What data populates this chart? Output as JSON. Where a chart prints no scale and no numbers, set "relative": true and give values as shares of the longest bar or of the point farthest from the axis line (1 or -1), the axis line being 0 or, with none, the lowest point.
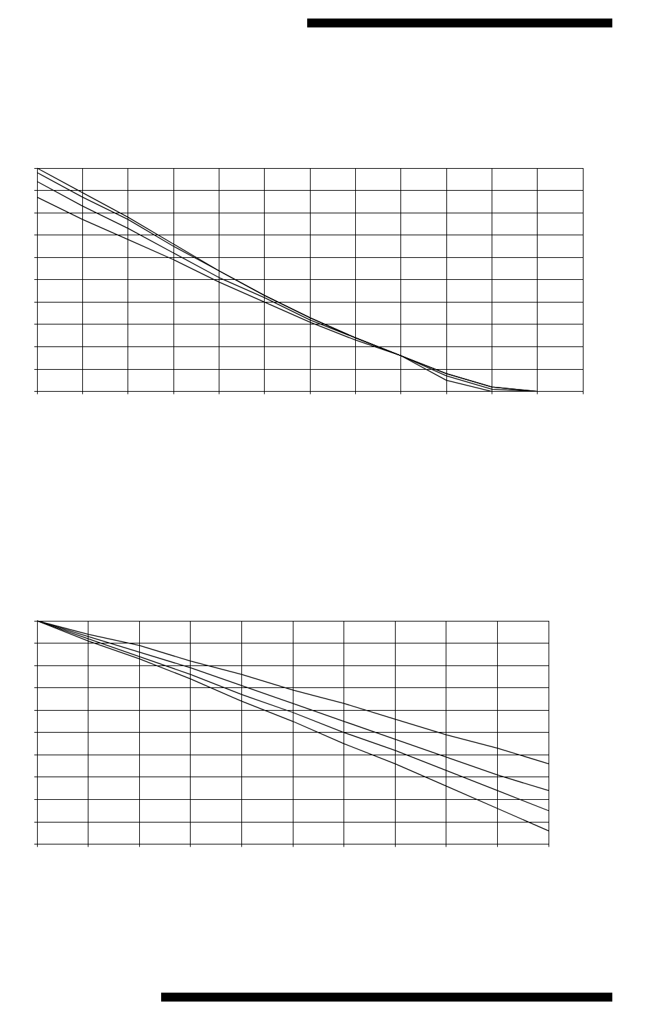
{
  "chart_data": [
    {
      "type": "line",
      "relative": true,
      "grid": true,
      "legend": false,
      "marker": "none",
      "line_style": "solid",
      "categories": [
        null,
        null,
        null,
        null,
        null,
        null,
        null,
        null,
        null,
        null,
        null,
        null,
        null
      ],
      "series": [
        {
          "color": "#000000",
          "values": [
            1,
            0.89,
            0.78,
            0.66,
            0.54,
            0.43,
            0.33,
            0.24,
            0.16,
            0.08,
            0.02,
            0,
            null
          ]
        },
        {
          "color": "#000000",
          "values": [
            0.98,
            0.87,
            0.77,
            0.65,
            0.54,
            0.43,
            0.33,
            0.24,
            0.16,
            0.08,
            0.02,
            0,
            null
          ]
        },
        {
          "color": "#000000",
          "values": [
            0.94,
            0.83,
            0.73,
            0.62,
            0.51,
            0.42,
            0.32,
            0.24,
            0.16,
            0.07,
            0.01,
            0,
            null
          ]
        },
        {
          "color": "#000000",
          "values": [
            0.87,
            0.77,
            0.68,
            0.59,
            0.49,
            0.4,
            0.31,
            0.23,
            0.16,
            0.05,
            0,
            0,
            null
          ]
        }
      ]
    },
    {
      "type": "line",
      "relative": true,
      "grid": true,
      "legend": false,
      "marker": "none",
      "line_style": "solid",
      "categories": [
        null,
        null,
        null,
        null,
        null,
        null,
        null,
        null,
        null,
        null,
        null
      ],
      "series": [
        {
          "color": "#000000",
          "values": [
            1,
            0.94,
            0.89,
            0.82,
            0.76,
            0.69,
            0.63,
            0.56,
            0.49,
            0.43,
            0.36
          ]
        },
        {
          "color": "#000000",
          "values": [
            1,
            0.93,
            0.86,
            0.79,
            0.71,
            0.63,
            0.55,
            0.47,
            0.39,
            0.31,
            0.24
          ]
        },
        {
          "color": "#000000",
          "values": [
            1,
            0.92,
            0.84,
            0.76,
            0.67,
            0.59,
            0.5,
            0.42,
            0.33,
            0.24,
            0.15
          ]
        },
        {
          "color": "#000000",
          "values": [
            1,
            0.91,
            0.83,
            0.74,
            0.64,
            0.55,
            0.45,
            0.36,
            0.26,
            0.16,
            0.06
          ]
        }
      ]
    }
  ]
}
